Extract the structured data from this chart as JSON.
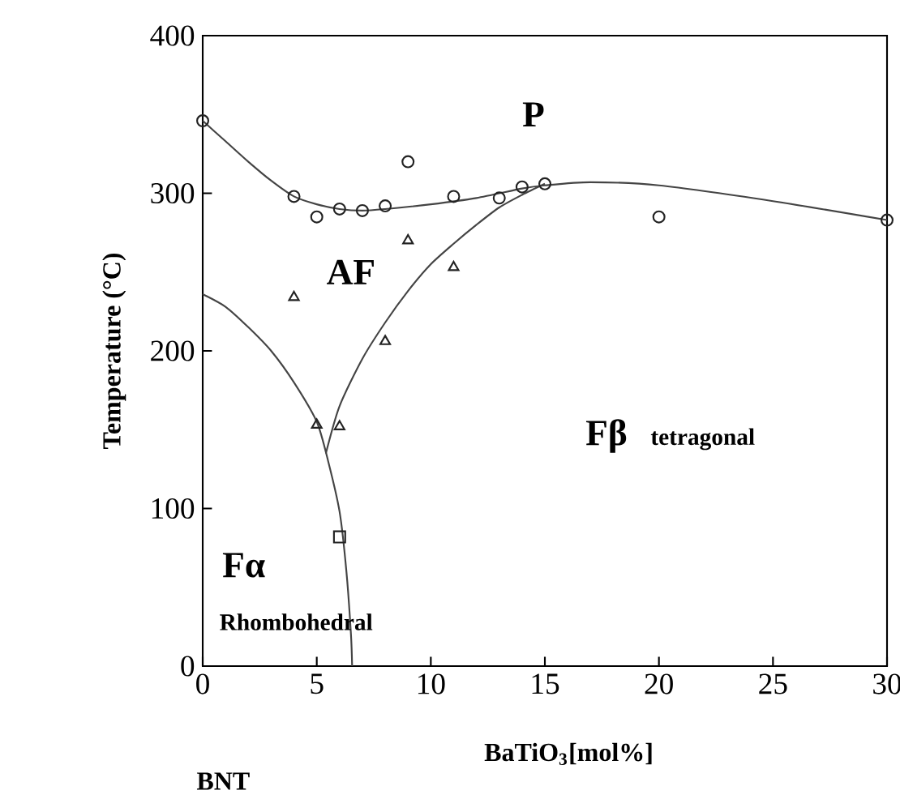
{
  "chart_data": {
    "type": "scatter",
    "xlabel": "BaTiO$_{3}$[mol%]",
    "ylabel": "Temperature (°C)",
    "xlim": [
      0,
      30
    ],
    "ylim": [
      0,
      400
    ],
    "xticks": [
      0,
      5,
      10,
      15,
      20,
      25,
      30
    ],
    "yticks": [
      0,
      100,
      200,
      300,
      400
    ],
    "grid": false,
    "annotations": [
      "P",
      "AF",
      "Fβ",
      "tetragonal",
      "Fα",
      "Rhombohedral",
      "BNT"
    ],
    "series": [
      {
        "marker": "circle",
        "color": "#222222",
        "x": [
          0,
          4,
          5,
          6,
          7,
          8,
          9,
          11,
          13,
          14,
          15,
          20,
          30
        ],
        "values": [
          346,
          298,
          285,
          290,
          289,
          292,
          320,
          298,
          297,
          304,
          306,
          285,
          283
        ]
      },
      {
        "marker": "triangle",
        "color": "#222222",
        "x": [
          4,
          5,
          6,
          8,
          9,
          11
        ],
        "values": [
          234,
          153,
          152,
          206,
          270,
          253
        ]
      },
      {
        "marker": "square",
        "color": "#222222",
        "x": [
          6
        ],
        "values": [
          82
        ]
      },
      {
        "type": "line",
        "marker": "none",
        "color": "#444444",
        "x": [
          0,
          1,
          2,
          3,
          4,
          5,
          6,
          7,
          8,
          10,
          12,
          14,
          15,
          17,
          20,
          25,
          30
        ],
        "values": [
          346,
          333,
          320,
          308,
          298,
          293,
          290,
          289,
          290,
          293,
          297,
          303,
          305,
          307,
          305,
          295,
          283
        ]
      },
      {
        "type": "line",
        "marker": "none",
        "color": "#444444",
        "x": [
          0,
          1,
          2,
          3,
          4,
          5,
          5.5,
          6,
          6.3,
          6.5,
          6.55
        ],
        "values": [
          236,
          228,
          215,
          200,
          180,
          155,
          130,
          98,
          60,
          20,
          0
        ]
      },
      {
        "type": "line",
        "marker": "none",
        "color": "#444444",
        "x": [
          5.4,
          6,
          7,
          8,
          9,
          10,
          11,
          12,
          13,
          14,
          15
        ],
        "values": [
          135,
          165,
          195,
          218,
          238,
          255,
          268,
          280,
          291,
          299,
          306
        ]
      }
    ]
  }
}
